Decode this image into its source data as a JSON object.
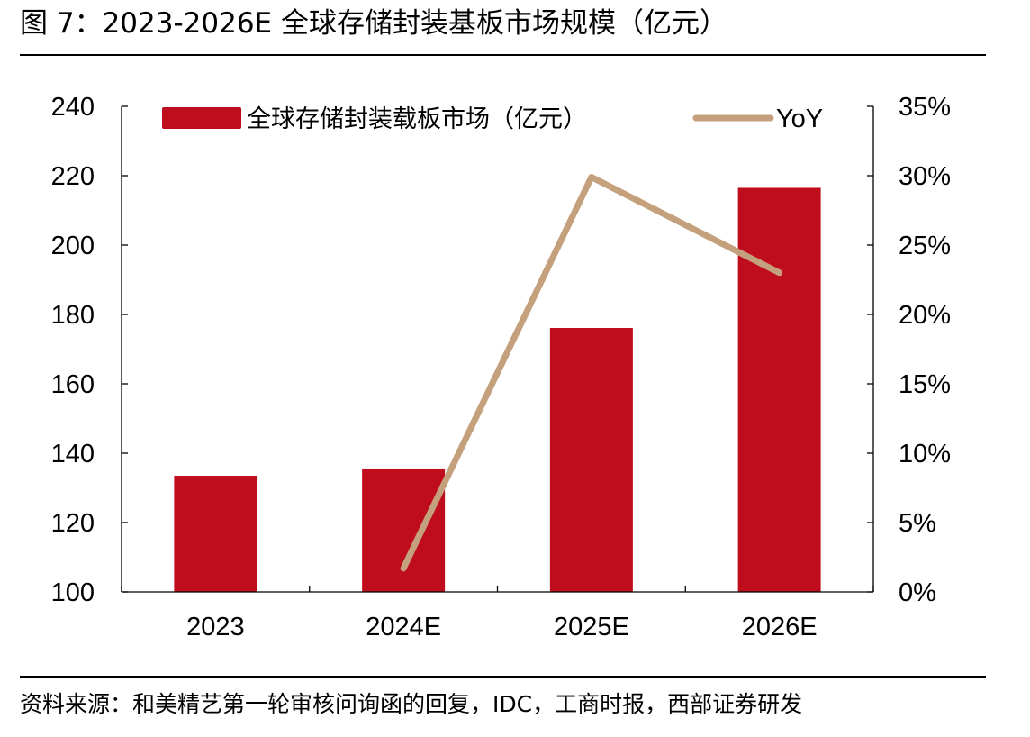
{
  "figure": {
    "title": "图 7：2023-2026E 全球存储封装基板市场规模（亿元）",
    "source": "资料来源：和美精艺第一轮审核问询函的回复，IDC，工商时报，西部证券研发"
  },
  "colors": {
    "bar": "#c00d1e",
    "line": "#c4a07c",
    "axis": "#000000"
  },
  "chart_data": {
    "type": "bar",
    "categories": [
      "2023",
      "2024E",
      "2025E",
      "2026E"
    ],
    "series": [
      {
        "name": "全球存储封装载板市场（亿元）",
        "type": "bar",
        "axis": "left",
        "values": [
          133.5,
          135.6,
          176.1,
          216.5
        ]
      },
      {
        "name": "YoY",
        "type": "line",
        "axis": "right",
        "values": [
          null,
          0.017,
          0.299,
          0.23
        ]
      }
    ],
    "y_left": {
      "min": 100,
      "max": 240,
      "step": 20,
      "ticks": [
        "100",
        "120",
        "140",
        "160",
        "180",
        "200",
        "220",
        "240"
      ]
    },
    "y_right": {
      "min": 0,
      "max": 0.35,
      "step": 0.05,
      "ticks": [
        "0%",
        "5%",
        "10%",
        "15%",
        "20%",
        "25%",
        "30%",
        "35%"
      ]
    },
    "legend": {
      "position": "top",
      "entries": [
        "全球存储封装载板市场（亿元）",
        "YoY"
      ]
    },
    "grid": false
  }
}
